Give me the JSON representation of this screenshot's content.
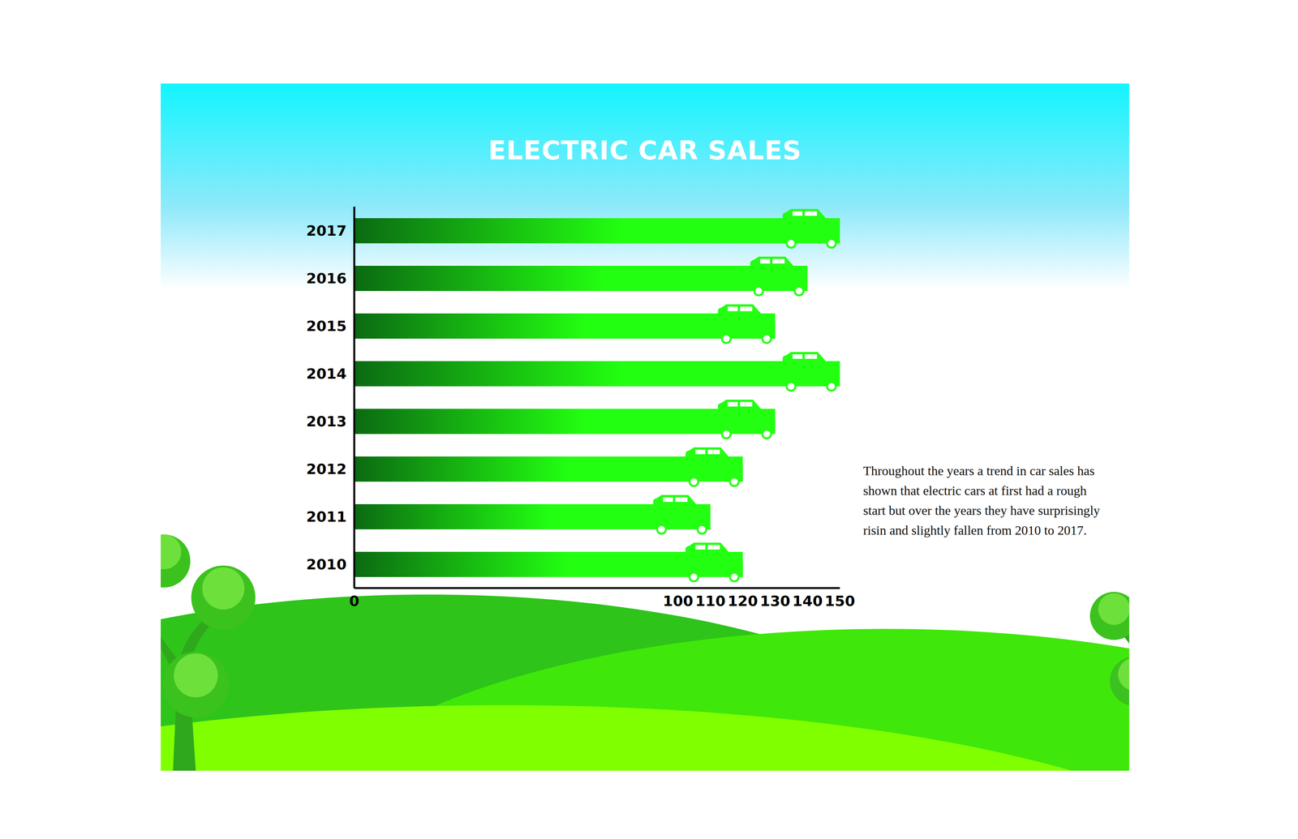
{
  "chart_data": {
    "type": "bar",
    "title": "ELECTRIC CAR SALES",
    "orientation": "horizontal",
    "categories": [
      "2010",
      "2011",
      "2012",
      "2013",
      "2014",
      "2015",
      "2016",
      "2017"
    ],
    "values": [
      120,
      110,
      120,
      130,
      150,
      130,
      140,
      150
    ],
    "color": "#22ff11",
    "xlim": [
      0,
      150
    ],
    "xticks": [
      0,
      100,
      110,
      120,
      130,
      140,
      150
    ],
    "grid": false,
    "annotation": "Throughout the years a trend in car sales has shown that electric cars at first had a rough start but over the years they have surprisingly risin and slightly fallen from 2010 to 2017."
  }
}
